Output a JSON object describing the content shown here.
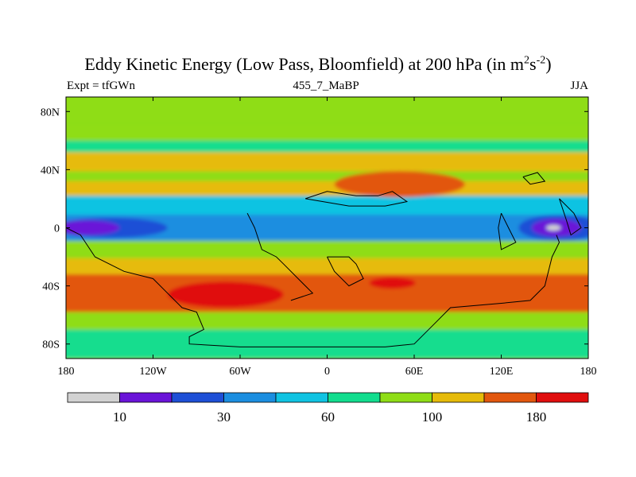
{
  "chart_data": {
    "type": "heatmap",
    "title": {
      "main": "Eddy Kinetic Energy (Low Pass, Bloomfield) at 200 hPa (in m",
      "sup1": "2",
      "mid": "s",
      "sup2": "-2",
      "end": ")"
    },
    "subtitles": {
      "left": "Expt = tfGWn",
      "center": "455_7_MaBP",
      "right": "JJA"
    },
    "x_ticks": [
      "180",
      "120W",
      "60W",
      "0",
      "60E",
      "120E",
      "180"
    ],
    "x_tick_values": [
      -180,
      -120,
      -60,
      0,
      60,
      120,
      180
    ],
    "y_ticks": [
      "80N",
      "40N",
      "0",
      "40S",
      "80S"
    ],
    "y_tick_values": [
      80,
      40,
      0,
      -40,
      -80
    ],
    "xlim": [
      -180,
      180
    ],
    "ylim": [
      -90,
      90
    ],
    "colorbar": {
      "colors": [
        "#d2d2d2",
        "#6a14d8",
        "#1e4fd6",
        "#1b8ee0",
        "#10c3e2",
        "#12dd8e",
        "#8fdd16",
        "#e6bb0a",
        "#e2570e",
        "#e00e0e"
      ],
      "labels": [
        "10",
        "30",
        "60",
        "100",
        "180"
      ],
      "label_after_box": [
        1,
        3,
        5,
        7,
        9
      ]
    },
    "contour_levels": [
      10,
      30,
      60,
      100,
      180
    ],
    "colors_by_level": [
      "#d2d2d2",
      "#6a14d8",
      "#1e4fd6",
      "#1b8ee0",
      "#10c3e2",
      "#12dd8e",
      "#8fdd16",
      "#e6bb0a",
      "#e2570e",
      "#e00e0e"
    ],
    "field_regions": [
      {
        "level": 7,
        "type": "band",
        "lat_center": 48,
        "half_width": 9
      },
      {
        "level": 7,
        "type": "band",
        "lat_center": 26,
        "half_width": 6
      },
      {
        "level": 5,
        "type": "band",
        "lat_center": 62,
        "half_width": 10
      },
      {
        "level": 6,
        "type": "band",
        "lat_center": 66,
        "half_width": 6
      },
      {
        "level": 4,
        "type": "band",
        "lat_center": 15,
        "half_width": 7
      },
      {
        "level": 3,
        "type": "band",
        "lat_center": 0,
        "half_width": 9
      },
      {
        "level": 2,
        "type": "ellipse",
        "lon": -150,
        "lat": 0,
        "rlon": 40,
        "rlat": 7
      },
      {
        "level": 1,
        "type": "ellipse",
        "lon": -165,
        "lat": 0,
        "rlon": 22,
        "rlat": 5
      },
      {
        "level": 2,
        "type": "ellipse",
        "lon": 160,
        "lat": 0,
        "rlon": 28,
        "rlat": 9
      },
      {
        "level": 1,
        "type": "ellipse",
        "lon": 158,
        "lat": 0,
        "rlon": 17,
        "rlat": 6
      },
      {
        "level": 0,
        "type": "ellipse",
        "lon": 156,
        "lat": 0,
        "rlon": 5,
        "rlat": 2
      },
      {
        "level": 9,
        "type": "ellipse",
        "lon": 55,
        "lat": 32,
        "rlon": 22,
        "rlat": 5
      },
      {
        "level": 8,
        "type": "ellipse",
        "lon": 50,
        "lat": 30,
        "rlon": 45,
        "rlat": 9
      },
      {
        "level": 7,
        "type": "band",
        "lat_center": -28,
        "half_width": 7
      },
      {
        "level": 8,
        "type": "band",
        "lat_center": -45,
        "half_width": 13
      },
      {
        "level": 9,
        "type": "ellipse",
        "lon": -70,
        "lat": -46,
        "rlon": 40,
        "rlat": 9
      },
      {
        "level": 9,
        "type": "ellipse",
        "lon": 45,
        "lat": -38,
        "rlon": 16,
        "rlat": 4
      },
      {
        "level": 6,
        "type": "band",
        "lat_center": -67,
        "half_width": 6
      },
      {
        "level": 5,
        "type": "band",
        "lat_center": -80,
        "half_width": 10
      }
    ],
    "land_outlines": [
      [
        [
          -180,
          0
        ],
        [
          -170,
          -5
        ],
        [
          -160,
          -20
        ],
        [
          -140,
          -30
        ],
        [
          -120,
          -35
        ],
        [
          -110,
          -45
        ],
        [
          -100,
          -55
        ],
        [
          -90,
          -58
        ],
        [
          -85,
          -70
        ],
        [
          -95,
          -75
        ],
        [
          -95,
          -80
        ],
        [
          -60,
          -82
        ],
        [
          40,
          -82
        ],
        [
          60,
          -80
        ],
        [
          75,
          -65
        ],
        [
          85,
          -55
        ],
        [
          120,
          -52
        ],
        [
          140,
          -50
        ],
        [
          150,
          -40
        ],
        [
          155,
          -20
        ],
        [
          160,
          -10
        ],
        [
          158,
          -5
        ]
      ],
      [
        [
          -55,
          10
        ],
        [
          -50,
          0
        ],
        [
          -45,
          -15
        ],
        [
          -35,
          -20
        ],
        [
          -30,
          -25
        ],
        [
          -20,
          -35
        ],
        [
          -10,
          -45
        ],
        [
          -25,
          -50
        ]
      ],
      [
        [
          0,
          -20
        ],
        [
          5,
          -30
        ],
        [
          15,
          -40
        ],
        [
          25,
          -35
        ],
        [
          20,
          -25
        ],
        [
          15,
          -20
        ],
        [
          5,
          -20
        ],
        [
          0,
          -20
        ]
      ],
      [
        [
          -15,
          20
        ],
        [
          0,
          25
        ],
        [
          20,
          22
        ],
        [
          35,
          22
        ],
        [
          45,
          25
        ],
        [
          55,
          18
        ],
        [
          40,
          15
        ],
        [
          15,
          15
        ],
        [
          -15,
          20
        ]
      ],
      [
        [
          135,
          35
        ],
        [
          140,
          30
        ],
        [
          150,
          32
        ],
        [
          145,
          38
        ],
        [
          135,
          35
        ]
      ],
      [
        [
          120,
          10
        ],
        [
          125,
          0
        ],
        [
          130,
          -10
        ],
        [
          120,
          -15
        ],
        [
          118,
          0
        ],
        [
          120,
          10
        ]
      ],
      [
        [
          160,
          20
        ],
        [
          170,
          10
        ],
        [
          175,
          0
        ],
        [
          168,
          -5
        ],
        [
          165,
          5
        ],
        [
          160,
          20
        ]
      ]
    ]
  }
}
